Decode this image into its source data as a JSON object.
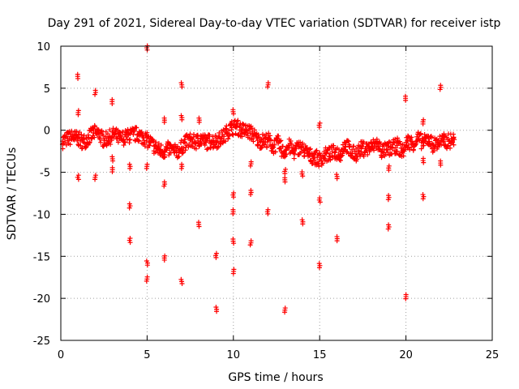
{
  "chart_data": {
    "type": "scatter",
    "title": "Day 291 of 2021, Sidereal Day-to-day VTEC variation (SDTVAR) for receiver istp",
    "xlabel": "GPS time / hours",
    "ylabel": "SDTVAR / TECUs",
    "xlim": [
      0,
      25
    ],
    "ylim": [
      -25,
      10
    ],
    "x_ticks": [
      0,
      5,
      10,
      15,
      20,
      25
    ],
    "y_ticks": [
      -25,
      -20,
      -15,
      -10,
      -5,
      0,
      5,
      10
    ],
    "x_tick_labels": [
      "0",
      "5",
      "10",
      "15",
      "20",
      "25"
    ],
    "y_tick_labels": [
      "-25",
      "-20",
      "-15",
      "-10",
      "-5",
      "0",
      "5",
      "10"
    ],
    "grid": true,
    "marker": "plus",
    "color": "#ff0000",
    "series": [
      {
        "name": "SDTVAR",
        "trend": [
          [
            0.1,
            -1.3
          ],
          [
            0.4,
            -1.0
          ],
          [
            0.7,
            -0.8
          ],
          [
            1.0,
            -1.0
          ],
          [
            1.3,
            -1.4
          ],
          [
            1.6,
            -0.9
          ],
          [
            1.9,
            -0.3
          ],
          [
            2.2,
            -0.4
          ],
          [
            2.5,
            -1.2
          ],
          [
            2.8,
            -0.9
          ],
          [
            3.1,
            -0.5
          ],
          [
            3.4,
            -1.0
          ],
          [
            3.8,
            -0.8
          ],
          [
            4.2,
            -0.5
          ],
          [
            4.5,
            -0.5
          ],
          [
            4.8,
            -0.9
          ],
          [
            5.1,
            -1.3
          ],
          [
            5.4,
            -1.9
          ],
          [
            5.7,
            -2.4
          ],
          [
            6.0,
            -2.5
          ],
          [
            6.3,
            -2.2
          ],
          [
            6.6,
            -2.6
          ],
          [
            6.9,
            -2.3
          ],
          [
            7.2,
            -1.5
          ],
          [
            7.5,
            -1.2
          ],
          [
            7.8,
            -1.5
          ],
          [
            8.1,
            -1.0
          ],
          [
            8.4,
            -1.4
          ],
          [
            8.7,
            -1.3
          ],
          [
            9.0,
            -1.3
          ],
          [
            9.3,
            -1.0
          ],
          [
            9.6,
            -0.3
          ],
          [
            9.9,
            0.3
          ],
          [
            10.2,
            0.4
          ],
          [
            10.5,
            0.0
          ],
          [
            10.8,
            -0.1
          ],
          [
            11.1,
            -0.4
          ],
          [
            11.4,
            -1.2
          ],
          [
            11.7,
            -1.3
          ],
          [
            12.0,
            -1.1
          ],
          [
            12.3,
            -2.0
          ],
          [
            12.6,
            -1.5
          ],
          [
            12.9,
            -2.7
          ],
          [
            13.2,
            -1.8
          ],
          [
            13.5,
            -2.6
          ],
          [
            13.8,
            -2.0
          ],
          [
            14.1,
            -2.4
          ],
          [
            14.4,
            -3.0
          ],
          [
            14.7,
            -3.2
          ],
          [
            15.0,
            -3.5
          ],
          [
            15.3,
            -3.0
          ],
          [
            15.6,
            -2.8
          ],
          [
            15.9,
            -2.6
          ],
          [
            16.2,
            -2.8
          ],
          [
            16.5,
            -1.5
          ],
          [
            16.8,
            -2.7
          ],
          [
            17.1,
            -2.8
          ],
          [
            17.4,
            -2.2
          ],
          [
            17.7,
            -2.2
          ],
          [
            18.0,
            -2.1
          ],
          [
            18.3,
            -1.5
          ],
          [
            18.6,
            -2.5
          ],
          [
            18.9,
            -2.3
          ],
          [
            19.2,
            -2.1
          ],
          [
            19.5,
            -1.8
          ],
          [
            19.8,
            -2.6
          ],
          [
            20.1,
            -1.3
          ],
          [
            20.4,
            -1.6
          ],
          [
            20.7,
            -1.0
          ],
          [
            21.0,
            -1.5
          ],
          [
            21.3,
            -1.0
          ],
          [
            21.6,
            -1.8
          ],
          [
            21.9,
            -1.4
          ],
          [
            22.2,
            -1.3
          ],
          [
            22.5,
            -1.3
          ],
          [
            22.8,
            -1.1
          ]
        ],
        "outliers": [
          [
            1.0,
            6.4
          ],
          [
            1.0,
            2.1
          ],
          [
            1.0,
            -5.6
          ],
          [
            2.0,
            4.5
          ],
          [
            2.0,
            -5.6
          ],
          [
            3.0,
            3.4
          ],
          [
            3.0,
            -3.4
          ],
          [
            3.0,
            -4.7
          ],
          [
            4.0,
            -4.3
          ],
          [
            4.0,
            -9.0
          ],
          [
            4.0,
            -13.1
          ],
          [
            5.0,
            9.8
          ],
          [
            5.0,
            -4.3
          ],
          [
            5.0,
            -15.8
          ],
          [
            5.0,
            -17.7
          ],
          [
            6.0,
            1.2
          ],
          [
            6.0,
            -6.4
          ],
          [
            6.0,
            -15.2
          ],
          [
            7.0,
            5.4
          ],
          [
            7.0,
            1.5
          ],
          [
            7.0,
            -4.3
          ],
          [
            7.0,
            -18.0
          ],
          [
            8.0,
            1.2
          ],
          [
            8.0,
            -11.2
          ],
          [
            9.0,
            -14.9
          ],
          [
            9.0,
            -21.3
          ],
          [
            10.0,
            2.2
          ],
          [
            10.0,
            -7.7
          ],
          [
            10.0,
            -9.7
          ],
          [
            10.0,
            -13.2
          ],
          [
            10.0,
            -16.8
          ],
          [
            11.0,
            -4.0
          ],
          [
            11.0,
            -7.4
          ],
          [
            11.0,
            -13.4
          ],
          [
            12.0,
            5.4
          ],
          [
            12.0,
            -9.7
          ],
          [
            13.0,
            -4.9
          ],
          [
            13.0,
            -5.9
          ],
          [
            13.0,
            -21.4
          ],
          [
            14.0,
            -5.2
          ],
          [
            14.0,
            -10.9
          ],
          [
            15.0,
            0.6
          ],
          [
            15.0,
            -8.3
          ],
          [
            15.0,
            -16.1
          ],
          [
            16.0,
            -5.5
          ],
          [
            16.0,
            -12.9
          ],
          [
            19.0,
            -4.5
          ],
          [
            19.0,
            -8.0
          ],
          [
            19.0,
            -11.5
          ],
          [
            20.0,
            3.8
          ],
          [
            20.0,
            -19.8
          ],
          [
            21.0,
            1.0
          ],
          [
            21.0,
            -3.6
          ],
          [
            21.0,
            -7.9
          ],
          [
            22.0,
            5.1
          ],
          [
            22.0,
            -3.9
          ]
        ]
      }
    ]
  }
}
